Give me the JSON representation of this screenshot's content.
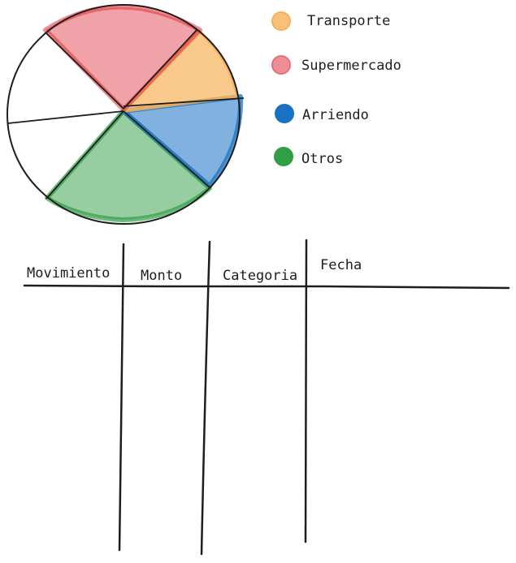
{
  "colors": {
    "ink": "#1e1e1e",
    "transporte": "#f6b15a",
    "supermercado": "#e8707a",
    "arriendo": "#1971c2",
    "otros": "#2f9e44"
  },
  "icons": {
    "legend_marker": "filled-circle"
  },
  "legend": {
    "transporte": "Transporte",
    "supermercado": "Supermercado",
    "arriendo": "Arriendo",
    "otros": "Otros"
  },
  "table": {
    "headers": {
      "movimiento": "Movimiento",
      "monto": "Monto",
      "categoria": "Categoria",
      "fecha": "Fecha"
    }
  }
}
